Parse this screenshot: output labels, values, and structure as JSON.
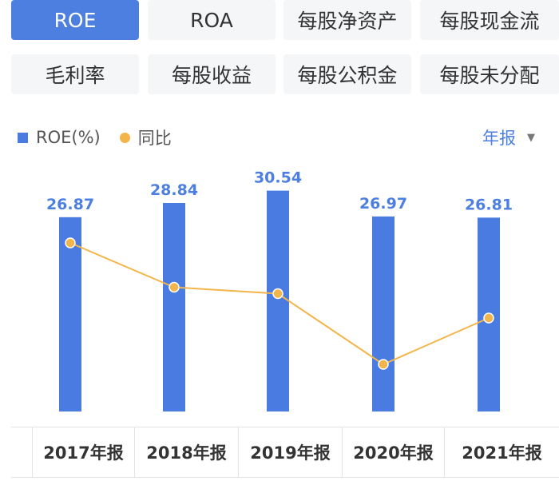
{
  "tabs": [
    {
      "label": "ROE",
      "active": true
    },
    {
      "label": "ROA",
      "active": false
    },
    {
      "label": "每股净资产",
      "active": false
    },
    {
      "label": "每股现金流",
      "active": false
    },
    {
      "label": "毛利率",
      "active": false
    },
    {
      "label": "每股收益",
      "active": false
    },
    {
      "label": "每股公积金",
      "active": false
    },
    {
      "label": "每股未分配",
      "active": false
    }
  ],
  "legend": {
    "bar_label": "ROE(%)",
    "line_label": "同比"
  },
  "period_selector": {
    "label": "年报",
    "icon": "caret-down-icon"
  },
  "colors": {
    "accent": "#4c7fe0",
    "bar": "#4a7be0",
    "line": "#f3b54a",
    "tab_bg": "#f5f6f8"
  },
  "chart_data": {
    "type": "bar",
    "categories": [
      "2017年报",
      "2018年报",
      "2019年报",
      "2020年报",
      "2021年报"
    ],
    "series": [
      {
        "name": "ROE(%)",
        "type": "bar",
        "values": [
          26.87,
          28.84,
          30.54,
          26.97,
          26.81
        ]
      },
      {
        "name": "同比",
        "type": "line",
        "values": [
          6.1,
          -5.0,
          -6.6,
          -24.3,
          -12.7
        ]
      }
    ],
    "data_labels": [
      "26.87",
      "28.84",
      "30.54",
      "26.97",
      "26.81"
    ],
    "legend_position": "top-left",
    "grid": false
  }
}
